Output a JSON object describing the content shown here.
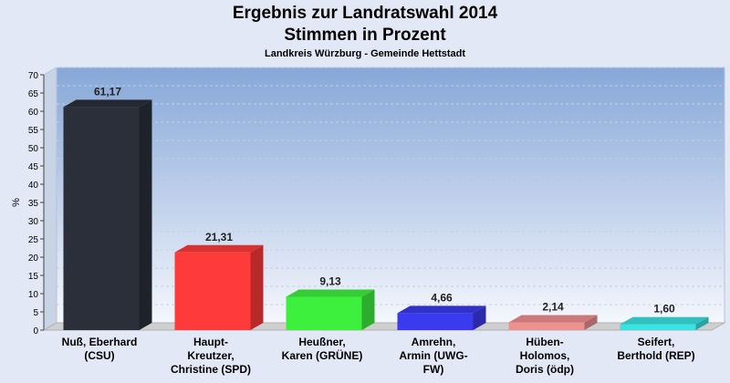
{
  "chart_data": {
    "type": "bar",
    "title": "Ergebnis zur Landratswahl 2014",
    "title_line2": "Stimmen in Prozent",
    "subtitle": "Landkreis Würzburg - Gemeinde Hettstadt",
    "ylabel": "%",
    "ylim": [
      0,
      70
    ],
    "yticks": [
      0,
      5,
      10,
      15,
      20,
      25,
      30,
      35,
      40,
      45,
      50,
      55,
      60,
      65,
      70
    ],
    "grid": true,
    "categories": [
      [
        "Nuß, Eberhard",
        "(CSU)"
      ],
      [
        "Haupt-",
        "Kreutzer,",
        "Christine (SPD)"
      ],
      [
        "Heußner,",
        "Karen (GRÜNE)"
      ],
      [
        "Amrehn,",
        "Armin (UWG-",
        "FW)"
      ],
      [
        "Hüben-",
        "Holomos,",
        "Doris (ödp)"
      ],
      [
        "Seifert,",
        "Berthold (REP)"
      ]
    ],
    "values": [
      61.17,
      21.31,
      9.13,
      4.66,
      2.14,
      1.6
    ],
    "value_labels": [
      "61,17",
      "21,31",
      "9,13",
      "4,66",
      "2,14",
      "1,60"
    ],
    "colors": [
      "#2a2f3a",
      "#ff3a3a",
      "#3ef03e",
      "#3a3aee",
      "#ee9090",
      "#3ae2e2"
    ]
  }
}
